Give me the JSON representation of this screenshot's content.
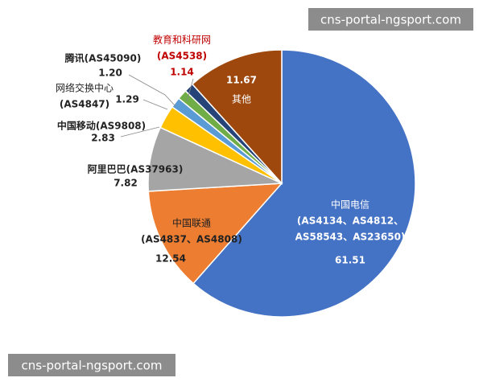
{
  "chart_data": {
    "type": "pie",
    "labels": [
      [
        "中国电信",
        "(AS4134、AS4812、",
        "AS58543、AS23650)"
      ],
      [
        "中国联通",
        "(AS4837、AS4808)"
      ],
      [
        "阿里巴巴(AS37963)"
      ],
      [
        "中国移动(AS9808)"
      ],
      [
        "网络交换中心",
        "(AS4847)"
      ],
      [
        "腾讯(AS45090)"
      ],
      [
        "教育和科研网",
        "(AS4538)"
      ],
      [
        "其他"
      ]
    ],
    "values": [
      61.51,
      12.54,
      7.82,
      2.83,
      1.29,
      1.2,
      1.14,
      11.67
    ],
    "value_labels": [
      "61.51",
      "12.54",
      "7.82",
      "2.83",
      "1.29",
      "1.20",
      "1.14",
      "11.67"
    ],
    "colors": [
      "#4472c4",
      "#ed7d31",
      "#a5a5a5",
      "#ffc000",
      "#5b9bd5",
      "#70ad47",
      "#264478",
      "#9e480e"
    ]
  },
  "watermarks": [
    "cns-portal-ngsport.com",
    "cns-portal-ngsport.com"
  ]
}
